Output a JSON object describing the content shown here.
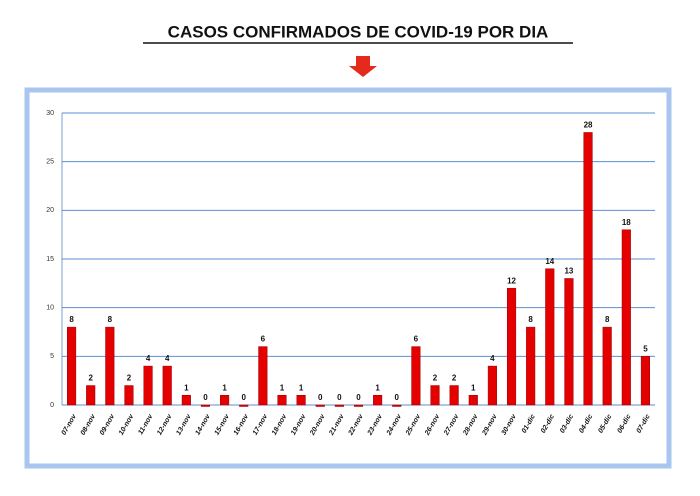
{
  "chart_data": {
    "type": "bar",
    "title": "CASOS CONFIRMADOS DE COVID-19 POR DIA",
    "categories": [
      "07-nov",
      "08-nov",
      "09-nov",
      "10-nov",
      "11-nov",
      "12-nov",
      "13-nov",
      "14-nov",
      "15-nov",
      "16-nov",
      "17-nov",
      "18-nov",
      "19-nov",
      "20-nov",
      "21-nov",
      "22-nov",
      "23-nov",
      "24-nov",
      "25-nov",
      "26-nov",
      "27-nov",
      "28-nov",
      "29-nov",
      "30-nov",
      "01-dic",
      "02-dic",
      "03-dic",
      "04-dic",
      "05-dic",
      "06-dic",
      "07-dic"
    ],
    "values": [
      8,
      2,
      8,
      2,
      4,
      4,
      1,
      0,
      1,
      0,
      6,
      1,
      1,
      0,
      0,
      0,
      1,
      0,
      6,
      2,
      2,
      1,
      4,
      12,
      8,
      14,
      13,
      28,
      8,
      18,
      5
    ],
    "color": "#e50000",
    "ylim": [
      0,
      30
    ],
    "yticks": [
      0,
      5,
      10,
      15,
      20,
      25,
      30
    ],
    "grid": true
  }
}
